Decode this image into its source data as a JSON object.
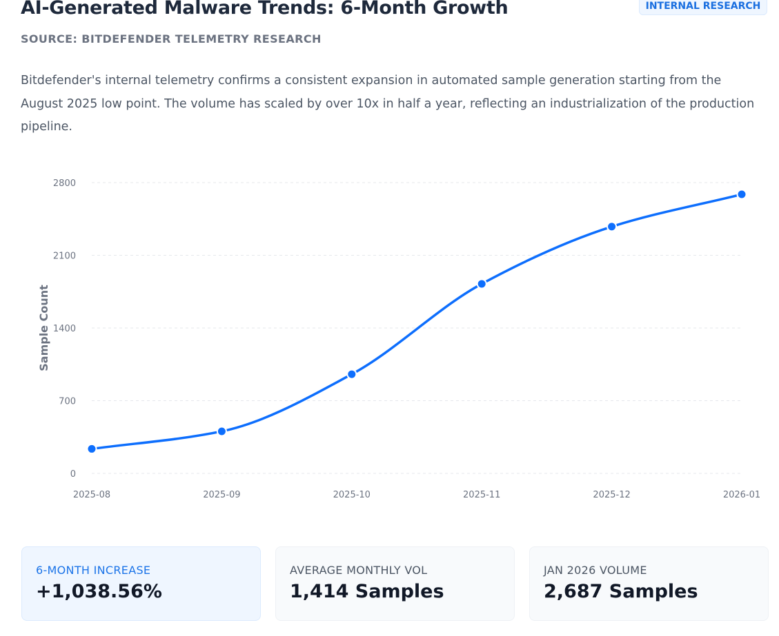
{
  "header": {
    "title": "AI-Generated Malware Trends: 6-Month Growth",
    "badge": "INTERNAL RESEARCH",
    "source": "SOURCE: BITDEFENDER TELEMETRY RESEARCH"
  },
  "description": "Bitdefender's internal telemetry confirms a consistent expansion in automated sample generation starting from the August 2025 low point. The volume has scaled by over 10x in half a year, reflecting an industrialization of the production pipeline.",
  "chart_data": {
    "type": "line",
    "title": "",
    "xlabel": "",
    "ylabel": "Sample Count",
    "categories": [
      "2025-08",
      "2025-09",
      "2025-10",
      "2025-11",
      "2025-12",
      "2026-01"
    ],
    "series": [
      {
        "name": "Sample Count",
        "values": [
          236,
          405,
          955,
          1825,
          2376,
          2687
        ],
        "color": "#0d6efd"
      }
    ],
    "ylim": [
      0,
      2800
    ],
    "yticks": [
      0,
      700,
      1400,
      2100,
      2800
    ],
    "grid": true,
    "legend": "none"
  },
  "stats": [
    {
      "label": "6-MONTH INCREASE",
      "value": "+1,038.56%"
    },
    {
      "label": "AVERAGE MONTHLY VOL",
      "value": "1,414 Samples"
    },
    {
      "label": "JAN 2026 VOLUME",
      "value": "2,687 Samples"
    }
  ]
}
